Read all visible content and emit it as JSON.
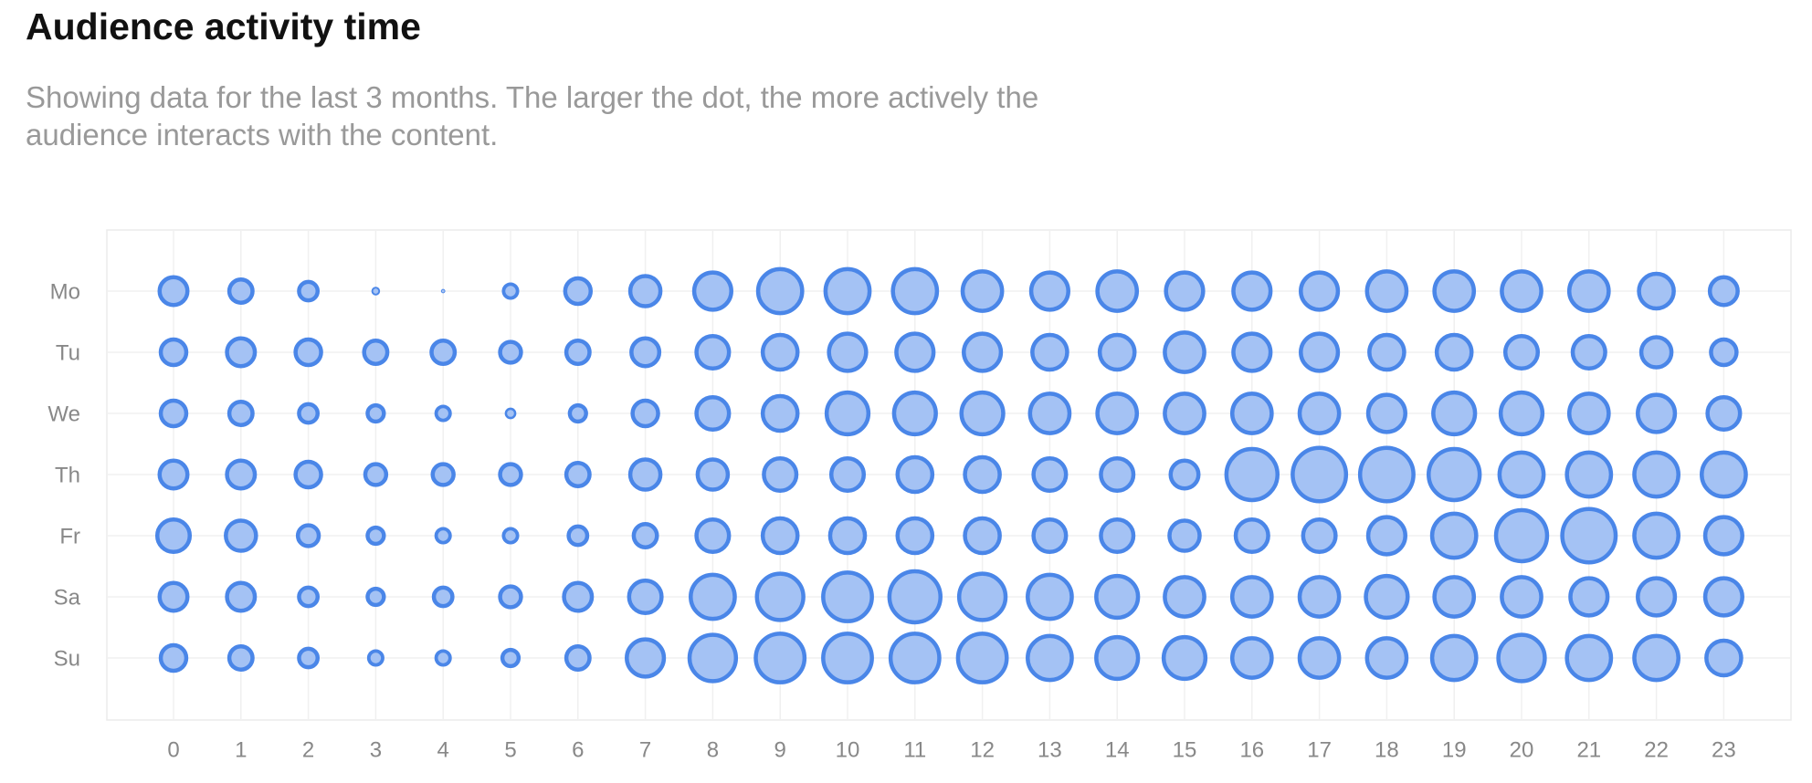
{
  "chart_data": {
    "type": "bubble",
    "title": "Audience activity time",
    "subtitle": "Showing data for the last 3 months. The larger the dot, the more actively the audience interacts with the content.",
    "categories": [
      0,
      1,
      2,
      3,
      4,
      5,
      6,
      7,
      8,
      9,
      10,
      11,
      12,
      13,
      14,
      15,
      16,
      17,
      18,
      19,
      20,
      21,
      22,
      23
    ],
    "rows": [
      "Mo",
      "Tu",
      "We",
      "Th",
      "Fr",
      "Sa",
      "Su"
    ],
    "values": [
      [
        12,
        10,
        8,
        3,
        1.5,
        6,
        11,
        13,
        16,
        19,
        19,
        19,
        17,
        16,
        17,
        16,
        16,
        16,
        17,
        17,
        17,
        17,
        15,
        12
      ],
      [
        11,
        12,
        11,
        10,
        10,
        9,
        10,
        12,
        14,
        15,
        16,
        16,
        16,
        15,
        15,
        17,
        16,
        16,
        15,
        15,
        14,
        14,
        13,
        11
      ],
      [
        11,
        10,
        8,
        7,
        6,
        4,
        7,
        11,
        14,
        15,
        18,
        18,
        18,
        17,
        17,
        17,
        17,
        17,
        16,
        18,
        18,
        17,
        16,
        14
      ],
      [
        12,
        12,
        11,
        9,
        9,
        9,
        10,
        13,
        13,
        14,
        14,
        15,
        15,
        14,
        14,
        12,
        22,
        23,
        23,
        22,
        19,
        19,
        19,
        19
      ],
      [
        14,
        13,
        9,
        7,
        6,
        6,
        8,
        10,
        14,
        15,
        15,
        15,
        15,
        14,
        14,
        13,
        14,
        14,
        16,
        19,
        22,
        23,
        19,
        16
      ],
      [
        12,
        12,
        8,
        7,
        8,
        9,
        12,
        14,
        19,
        20,
        21,
        22,
        20,
        19,
        18,
        17,
        17,
        17,
        18,
        17,
        17,
        16,
        16,
        16
      ],
      [
        11,
        10,
        8,
        6,
        6,
        7,
        10,
        16,
        20,
        21,
        21,
        21,
        21,
        19,
        18,
        18,
        17,
        17,
        17,
        19,
        20,
        19,
        19,
        15
      ]
    ],
    "color": "#a4c2f4",
    "edge_color": "#4a86e8",
    "grid": true
  }
}
